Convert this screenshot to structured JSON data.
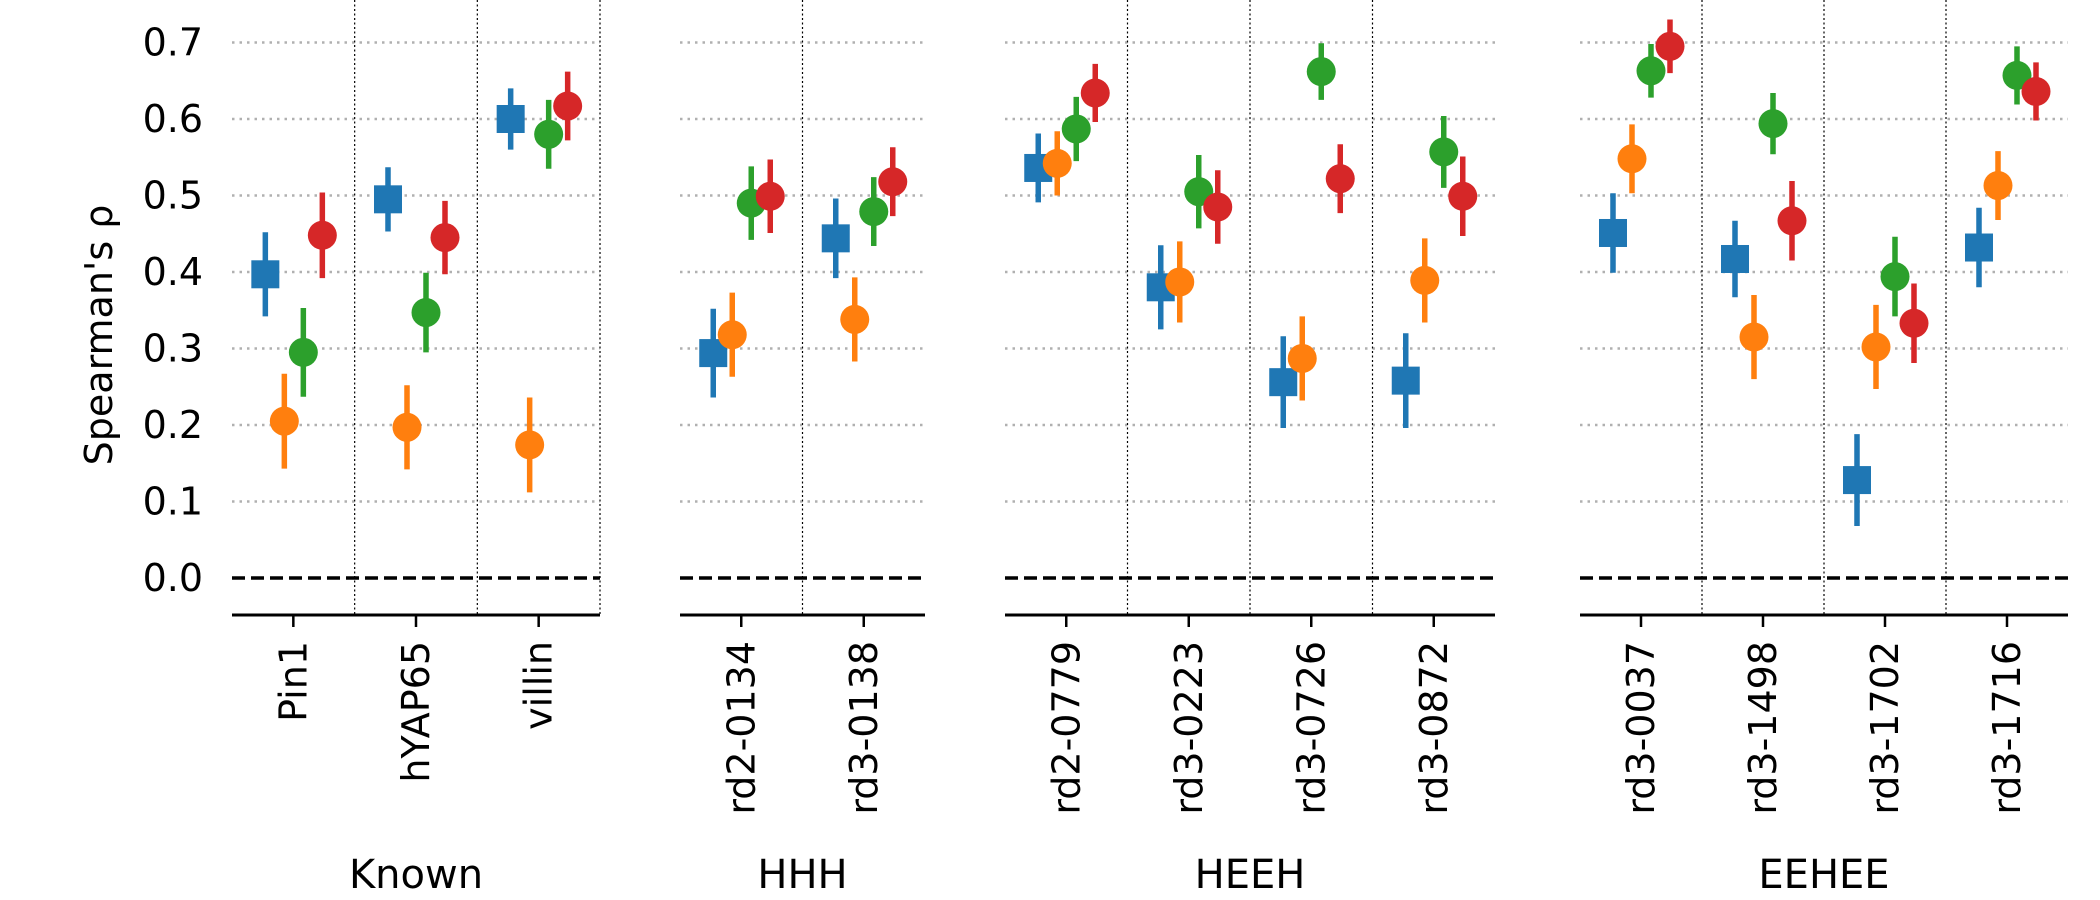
{
  "chart_data": {
    "type": "scatter",
    "ylabel": "Spearman's ρ",
    "ylim": [
      -0.05,
      0.75
    ],
    "yticks": [
      "0.0",
      "0.1",
      "0.2",
      "0.3",
      "0.4",
      "0.5",
      "0.6",
      "0.7"
    ],
    "grid": "horizontal dotted",
    "reference_line": {
      "y": 0.0,
      "style": "dashed"
    },
    "series_colors": [
      "#1f77b4",
      "#ff7f0e",
      "#2ca02c",
      "#d62728"
    ],
    "series_markers": [
      "square",
      "circle",
      "circle",
      "circle"
    ],
    "groups": [
      {
        "label": "Known",
        "categories": [
          "Pin1",
          "hYAP65",
          "villin"
        ],
        "values": [
          [
            [
              0.397,
              0.055
            ],
            [
              0.205,
              0.062
            ],
            [
              0.295,
              0.058
            ],
            [
              0.448,
              0.056
            ]
          ],
          [
            [
              0.495,
              0.042
            ],
            [
              0.197,
              0.055
            ],
            [
              0.347,
              0.052
            ],
            [
              0.445,
              0.048
            ]
          ],
          [
            [
              0.6,
              0.04
            ],
            [
              0.174,
              0.062
            ],
            [
              0.58,
              0.045
            ],
            [
              0.617,
              0.045
            ]
          ]
        ]
      },
      {
        "label": "HHH",
        "categories": [
          "rd2-0134",
          "rd3-0138"
        ],
        "values": [
          [
            [
              0.294,
              0.058
            ],
            [
              0.318,
              0.055
            ],
            [
              0.49,
              0.048
            ],
            [
              0.499,
              0.048
            ]
          ],
          [
            [
              0.444,
              0.052
            ],
            [
              0.338,
              0.055
            ],
            [
              0.479,
              0.045
            ],
            [
              0.518,
              0.045
            ]
          ]
        ]
      },
      {
        "label": "HEEH",
        "categories": [
          "rd2-0779",
          "rd3-0223",
          "rd3-0726",
          "rd3-0872"
        ],
        "values": [
          [
            [
              0.536,
              0.045
            ],
            [
              0.542,
              0.042
            ],
            [
              0.587,
              0.042
            ],
            [
              0.634,
              0.038
            ]
          ],
          [
            [
              0.38,
              0.055
            ],
            [
              0.387,
              0.053
            ],
            [
              0.505,
              0.048
            ],
            [
              0.485,
              0.048
            ]
          ],
          [
            [
              0.256,
              0.06
            ],
            [
              0.287,
              0.055
            ],
            [
              0.662,
              0.037
            ],
            [
              0.522,
              0.045
            ]
          ],
          [
            [
              0.258,
              0.062
            ],
            [
              0.389,
              0.055
            ],
            [
              0.557,
              0.047
            ],
            [
              0.499,
              0.052
            ]
          ]
        ]
      },
      {
        "label": "EEHEE",
        "categories": [
          "rd3-0037",
          "rd3-1498",
          "rd3-1702",
          "rd3-1716"
        ],
        "values": [
          [
            [
              0.451,
              0.052
            ],
            [
              0.548,
              0.045
            ],
            [
              0.663,
              0.035
            ],
            [
              0.695,
              0.035
            ]
          ],
          [
            [
              0.417,
              0.05
            ],
            [
              0.315,
              0.055
            ],
            [
              0.594,
              0.04
            ],
            [
              0.467,
              0.052
            ]
          ],
          [
            [
              0.128,
              0.06
            ],
            [
              0.302,
              0.055
            ],
            [
              0.394,
              0.052
            ],
            [
              0.333,
              0.052
            ]
          ],
          [
            [
              0.432,
              0.052
            ],
            [
              0.513,
              0.045
            ],
            [
              0.657,
              0.038
            ],
            [
              0.636,
              0.038
            ]
          ]
        ]
      }
    ]
  }
}
